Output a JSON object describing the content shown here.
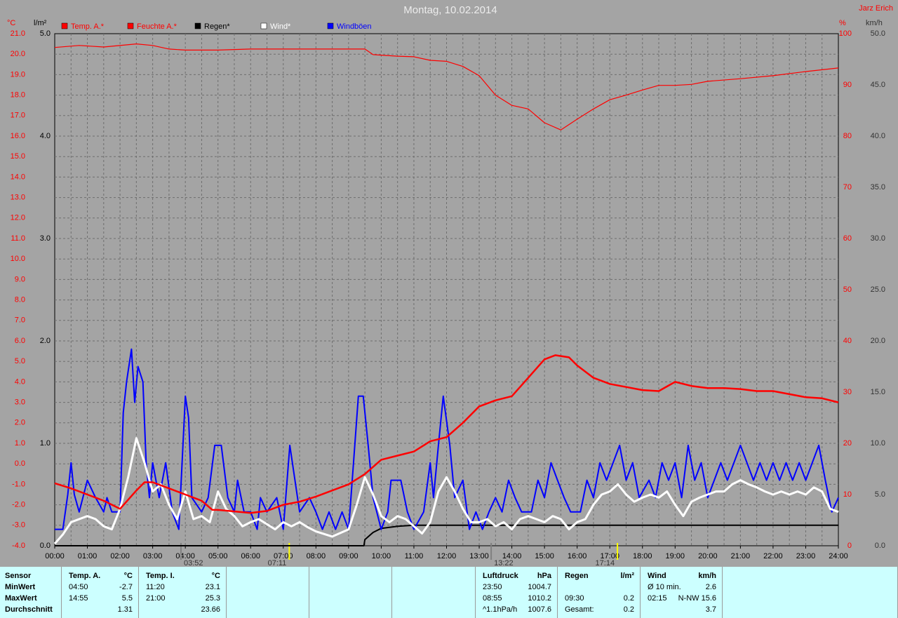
{
  "chart_data": {
    "type": "line",
    "title": "Montag, 10.02.2014",
    "author": "Jarz Erich",
    "y_unit": "°C",
    "y_rain_unit": "l/m²",
    "y2_unit": "%",
    "y_wind_unit": "km/h",
    "xlim": [
      0,
      24
    ],
    "xticks": [
      {
        "value": 0,
        "label": "00:00"
      },
      {
        "value": 1,
        "label": "01:00"
      },
      {
        "value": 2,
        "label": "02:00"
      },
      {
        "value": 3,
        "label": "03:00"
      },
      {
        "value": 4,
        "label": "04:00"
      },
      {
        "value": 5,
        "label": "05:00"
      },
      {
        "value": 6,
        "label": "06:00"
      },
      {
        "value": 7,
        "label": "07:00"
      },
      {
        "value": 8,
        "label": "08:00"
      },
      {
        "value": 9,
        "label": "09:00"
      },
      {
        "value": 10,
        "label": "10:00"
      },
      {
        "value": 11,
        "label": "11:00"
      },
      {
        "value": 12,
        "label": "12:00"
      },
      {
        "value": 13,
        "label": "13:00"
      },
      {
        "value": 14,
        "label": "14:00"
      },
      {
        "value": 15,
        "label": "15:00"
      },
      {
        "value": 16,
        "label": "16:00"
      },
      {
        "value": 17,
        "label": "17:00"
      },
      {
        "value": 18,
        "label": "18:00"
      },
      {
        "value": 19,
        "label": "19:00"
      },
      {
        "value": 20,
        "label": "20:00"
      },
      {
        "value": 21,
        "label": "21:00"
      },
      {
        "value": 22,
        "label": "22:00"
      },
      {
        "value": 23,
        "label": "23:00"
      },
      {
        "value": 24,
        "label": "24:00"
      }
    ],
    "ylim": [
      -4,
      21
    ],
    "yticks": [
      {
        "value": 21,
        "label": "21.0"
      },
      {
        "value": 20,
        "label": "20.0"
      },
      {
        "value": 19,
        "label": "19.0"
      },
      {
        "value": 18,
        "label": "18.0"
      },
      {
        "value": 17,
        "label": "17.0"
      },
      {
        "value": 16,
        "label": "16.0"
      },
      {
        "value": 15,
        "label": "15.0"
      },
      {
        "value": 14,
        "label": "14.0"
      },
      {
        "value": 13,
        "label": "13.0"
      },
      {
        "value": 12,
        "label": "12.0"
      },
      {
        "value": 11,
        "label": "11.0"
      },
      {
        "value": 10,
        "label": "10.0"
      },
      {
        "value": 9,
        "label": "9.0"
      },
      {
        "value": 8,
        "label": "8.0"
      },
      {
        "value": 7,
        "label": "7.0"
      },
      {
        "value": 6,
        "label": "6.0"
      },
      {
        "value": 5,
        "label": "5.0"
      },
      {
        "value": 4,
        "label": "4.0"
      },
      {
        "value": 3,
        "label": "3.0"
      },
      {
        "value": 2,
        "label": "2.0"
      },
      {
        "value": 1,
        "label": "1.0"
      },
      {
        "value": 0,
        "label": "0.0"
      },
      {
        "value": -1,
        "label": "-1.0"
      },
      {
        "value": -2,
        "label": "-2.0"
      },
      {
        "value": -3,
        "label": "-3.0"
      },
      {
        "value": -4,
        "label": "-4.0"
      }
    ],
    "y_rain_lim": [
      0,
      5
    ],
    "y_rain_ticks": [
      {
        "value": 5,
        "label": "5.0"
      },
      {
        "value": 4,
        "label": "4.0"
      },
      {
        "value": 3,
        "label": "3.0"
      },
      {
        "value": 2,
        "label": "2.0"
      },
      {
        "value": 1,
        "label": "1.0"
      },
      {
        "value": 0,
        "label": "0.0"
      }
    ],
    "y2lim": [
      0,
      100
    ],
    "y2ticks": [
      100,
      90,
      80,
      70,
      60,
      50,
      40,
      30,
      20,
      10,
      0
    ],
    "y_wind_lim": [
      0,
      50
    ],
    "y_wind_ticks": [
      {
        "value": 50,
        "label": "50.0"
      },
      {
        "value": 45,
        "label": "45.0"
      },
      {
        "value": 40,
        "label": "40.0"
      },
      {
        "value": 35,
        "label": "35.0"
      },
      {
        "value": 30,
        "label": "30.0"
      },
      {
        "value": 25,
        "label": "25.0"
      },
      {
        "value": 20,
        "label": "20.0"
      },
      {
        "value": 15,
        "label": "15.0"
      },
      {
        "value": 10,
        "label": "10.0"
      },
      {
        "value": 5,
        "label": "5.0"
      },
      {
        "value": 0,
        "label": "0.0"
      }
    ],
    "grid": true,
    "series": [
      {
        "name": "Temp. A.*",
        "color": "#ff0000",
        "axis": "y",
        "x": [
          0,
          0.5,
          1,
          1.5,
          2,
          2.5,
          2.75,
          3,
          3.5,
          4,
          4.5,
          4.83,
          5,
          6,
          6.5,
          7,
          7.5,
          8,
          8.5,
          9,
          9.5,
          10,
          10.5,
          11,
          11.5,
          12,
          12.5,
          13,
          13.5,
          14,
          14.5,
          15,
          15.33,
          15.75,
          16,
          16.5,
          17,
          17.5,
          18,
          18.5,
          19,
          19.5,
          20,
          20.5,
          21,
          21.5,
          22,
          22.5,
          23,
          23.5,
          24
        ],
        "values": [
          -0.95,
          -1.2,
          -1.5,
          -1.8,
          -2.2,
          -1.3,
          -0.9,
          -0.9,
          -1.2,
          -1.5,
          -1.8,
          -2.25,
          -2.25,
          -2.4,
          -2.3,
          -2.0,
          -1.85,
          -1.6,
          -1.3,
          -1.0,
          -0.5,
          0.2,
          0.4,
          0.6,
          1.1,
          1.3,
          2.0,
          2.8,
          3.1,
          3.3,
          4.2,
          5.1,
          5.3,
          5.2,
          4.8,
          4.2,
          3.9,
          3.75,
          3.6,
          3.55,
          4.0,
          3.8,
          3.7,
          3.7,
          3.65,
          3.55,
          3.55,
          3.4,
          3.25,
          3.2,
          3.0
        ]
      },
      {
        "name": "Feuchte A.*",
        "color": "#ff0000",
        "axis": "y2",
        "x": [
          0,
          0.75,
          1.5,
          2.5,
          3,
          3.5,
          4,
          5,
          6,
          9.5,
          9.75,
          10.5,
          11,
          11.5,
          12,
          12.5,
          13,
          13.5,
          14,
          14.5,
          15,
          15.5,
          16,
          16.5,
          17,
          17.5,
          18,
          18.5,
          19,
          19.5,
          20,
          21,
          22,
          23,
          24
        ],
        "values": [
          97.3,
          97.7,
          97.4,
          98,
          97.7,
          97,
          96.8,
          96.8,
          97,
          97,
          95.9,
          95.6,
          95.5,
          94.8,
          94.6,
          93.6,
          91.8,
          88,
          86,
          85.3,
          82.6,
          81.2,
          83.3,
          85.3,
          87.1,
          88,
          89,
          89.9,
          89.9,
          90.1,
          90.7,
          91.2,
          91.8,
          92.6,
          93.3
        ]
      },
      {
        "name": "Regen*",
        "color": "#000000",
        "axis": "rain",
        "x": [
          0,
          9.47,
          9.5,
          9.75,
          10,
          10.5,
          11,
          24
        ],
        "values": [
          0,
          0,
          0.06,
          0.13,
          0.17,
          0.19,
          0.2,
          0.2
        ]
      },
      {
        "name": "Wind*",
        "color": "#ffffff",
        "axis": "wind",
        "x": [
          0,
          0.25,
          0.5,
          1,
          1.25,
          1.5,
          1.75,
          2,
          2.25,
          2.5,
          2.75,
          3,
          3.25,
          3.5,
          3.75,
          4,
          4.25,
          4.5,
          4.75,
          5,
          5.25,
          5.5,
          5.75,
          6,
          6.25,
          6.5,
          6.75,
          7,
          7.25,
          7.5,
          7.75,
          8,
          8.5,
          9,
          9.25,
          9.5,
          9.75,
          10,
          10.25,
          10.5,
          10.75,
          11,
          11.25,
          11.5,
          11.75,
          12,
          12.25,
          12.5,
          12.75,
          13,
          13.25,
          13.5,
          13.75,
          14,
          14.25,
          14.5,
          14.75,
          15,
          15.25,
          15.5,
          15.75,
          16,
          16.25,
          16.5,
          16.75,
          17,
          17.25,
          17.5,
          17.75,
          18,
          18.25,
          18.5,
          18.75,
          19,
          19.25,
          19.5,
          19.75,
          20,
          20.25,
          20.5,
          20.75,
          21,
          21.25,
          21.5,
          21.75,
          22,
          22.25,
          22.5,
          22.75,
          23,
          23.25,
          23.5,
          23.75,
          24
        ],
        "values": [
          0.2,
          1.1,
          2.3,
          2.9,
          2.6,
          1.9,
          1.6,
          3.6,
          6.7,
          10.5,
          8.1,
          5.3,
          6.0,
          4.0,
          2.6,
          5.3,
          2.6,
          2.9,
          2.3,
          5.3,
          3.6,
          2.9,
          1.9,
          2.3,
          2.6,
          2.1,
          1.6,
          2.3,
          1.9,
          2.3,
          1.8,
          1.4,
          0.9,
          1.6,
          4.0,
          6.7,
          5.0,
          2.9,
          2.3,
          2.9,
          2.6,
          1.9,
          1.2,
          2.3,
          5.3,
          6.7,
          5.3,
          3.6,
          2.3,
          2.3,
          2.6,
          1.9,
          2.3,
          1.6,
          2.6,
          2.9,
          2.6,
          2.3,
          2.9,
          2.6,
          1.6,
          2.3,
          2.6,
          4.0,
          5.0,
          5.3,
          6.0,
          5.0,
          4.3,
          4.7,
          5.0,
          4.7,
          5.3,
          4.0,
          2.9,
          4.3,
          4.7,
          5.0,
          5.3,
          5.3,
          6.0,
          6.4,
          6.0,
          5.7,
          5.3,
          5.0,
          5.3,
          5.0,
          5.3,
          5.0,
          5.7,
          5.3,
          3.6,
          3.3
        ]
      },
      {
        "name": "Windböen",
        "color": "#0000ff",
        "axis": "wind",
        "x": [
          0,
          0.25,
          0.4,
          0.5,
          0.6,
          0.75,
          1,
          1.25,
          1.5,
          1.6,
          1.75,
          2,
          2.1,
          2.2,
          2.35,
          2.45,
          2.55,
          2.7,
          2.8,
          2.9,
          3,
          3.2,
          3.4,
          3.6,
          3.8,
          4,
          4.1,
          4.2,
          4.5,
          4.7,
          4.9,
          5.1,
          5.3,
          5.5,
          5.6,
          5.8,
          6,
          6.2,
          6.3,
          6.5,
          6.8,
          7,
          7.2,
          7.5,
          7.8,
          8,
          8.2,
          8.4,
          8.6,
          8.8,
          9,
          9.15,
          9.3,
          9.45,
          9.6,
          9.75,
          10,
          10.2,
          10.3,
          10.6,
          10.8,
          11,
          11.3,
          11.5,
          11.6,
          11.75,
          11.9,
          12.1,
          12.25,
          12.5,
          12.7,
          12.9,
          13.1,
          13.3,
          13.5,
          13.7,
          13.9,
          14.1,
          14.3,
          14.6,
          14.8,
          15,
          15.2,
          15.4,
          15.6,
          15.8,
          16.1,
          16.3,
          16.5,
          16.7,
          16.9,
          17.1,
          17.3,
          17.5,
          17.7,
          17.9,
          18.2,
          18.4,
          18.6,
          18.8,
          19,
          19.2,
          19.4,
          19.6,
          19.8,
          20,
          20.2,
          20.4,
          20.6,
          20.8,
          21,
          21.2,
          21.4,
          21.6,
          21.8,
          22,
          22.2,
          22.4,
          22.6,
          22.8,
          23,
          23.2,
          23.4,
          23.6,
          23.8,
          24
        ],
        "values": [
          1.6,
          1.6,
          5.0,
          8.1,
          5.0,
          3.3,
          6.4,
          4.7,
          3.3,
          4.7,
          3.3,
          3.3,
          13.0,
          16.0,
          19.2,
          14.0,
          17.5,
          16.0,
          8.1,
          4.7,
          8.1,
          4.7,
          8.1,
          3.3,
          1.6,
          14.6,
          12.5,
          4.7,
          3.3,
          4.7,
          9.8,
          9.8,
          4.7,
          3.3,
          6.4,
          3.3,
          3.3,
          1.6,
          4.7,
          3.3,
          4.7,
          1.6,
          9.8,
          3.3,
          4.7,
          3.3,
          1.6,
          3.3,
          1.6,
          3.3,
          1.6,
          8.1,
          14.6,
          14.6,
          9.8,
          4.7,
          1.6,
          3.3,
          6.4,
          6.4,
          3.3,
          1.6,
          3.3,
          8.1,
          4.7,
          9.8,
          14.6,
          9.8,
          4.7,
          6.4,
          1.6,
          3.3,
          1.6,
          3.3,
          4.7,
          3.3,
          6.4,
          4.7,
          3.3,
          3.3,
          6.4,
          4.7,
          8.1,
          6.4,
          4.7,
          3.3,
          3.3,
          6.4,
          4.7,
          8.1,
          6.4,
          8.1,
          9.8,
          6.4,
          8.1,
          4.7,
          6.4,
          4.7,
          8.1,
          6.4,
          8.1,
          4.7,
          9.8,
          6.4,
          8.1,
          4.7,
          6.4,
          8.1,
          6.4,
          8.1,
          9.8,
          8.1,
          6.4,
          8.1,
          6.4,
          8.1,
          6.4,
          8.1,
          6.4,
          8.1,
          6.4,
          8.1,
          9.8,
          6.4,
          3.3,
          4.7
        ]
      }
    ],
    "markers": [
      {
        "value": 3.8667,
        "label": "03:52",
        "color": "#808080"
      },
      {
        "value": 7.1833,
        "label": "07:11",
        "color": "#ffff00"
      },
      {
        "value": 13.3667,
        "label": "13:22",
        "color": "#808080"
      },
      {
        "value": 17.2333,
        "label": "17:14",
        "color": "#ffff00"
      }
    ]
  },
  "table": {
    "blocks": [
      {
        "header": [
          "Sensor"
        ],
        "rows": [
          [
            "MinWert"
          ],
          [
            "MaxWert"
          ],
          [
            "Durchschnitt"
          ]
        ]
      },
      {
        "header": [
          "Temp. A.",
          "°C"
        ],
        "rows": [
          [
            "04:50",
            "-2.7"
          ],
          [
            "14:55",
            "5.5"
          ],
          [
            null,
            "1.31"
          ]
        ]
      },
      {
        "header": [
          "Temp. I.",
          "°C"
        ],
        "rows": [
          [
            "11:20",
            "23.1"
          ],
          [
            "21:00",
            "25.3"
          ],
          [
            null,
            "23.66"
          ]
        ]
      },
      {
        "header": [
          "Luftdruck",
          "hPa"
        ],
        "rows": [
          [
            "23:50",
            "1004.7"
          ],
          [
            "08:55",
            "1010.2"
          ],
          [
            "^1.1hPa/h",
            "1007.6"
          ]
        ]
      },
      {
        "header": [
          "Regen",
          "l/m²"
        ],
        "rows": [
          [
            null,
            null
          ],
          [
            "09:30",
            "0.2"
          ],
          [
            "Gesamt:",
            "0.2"
          ]
        ]
      },
      {
        "header": [
          "Wind",
          "km/h"
        ],
        "rows": [
          [
            "Ø 10 min.",
            "2.6"
          ],
          [
            "02:15",
            "N-NW 15.6"
          ],
          [
            null,
            "3.7"
          ]
        ]
      }
    ]
  }
}
